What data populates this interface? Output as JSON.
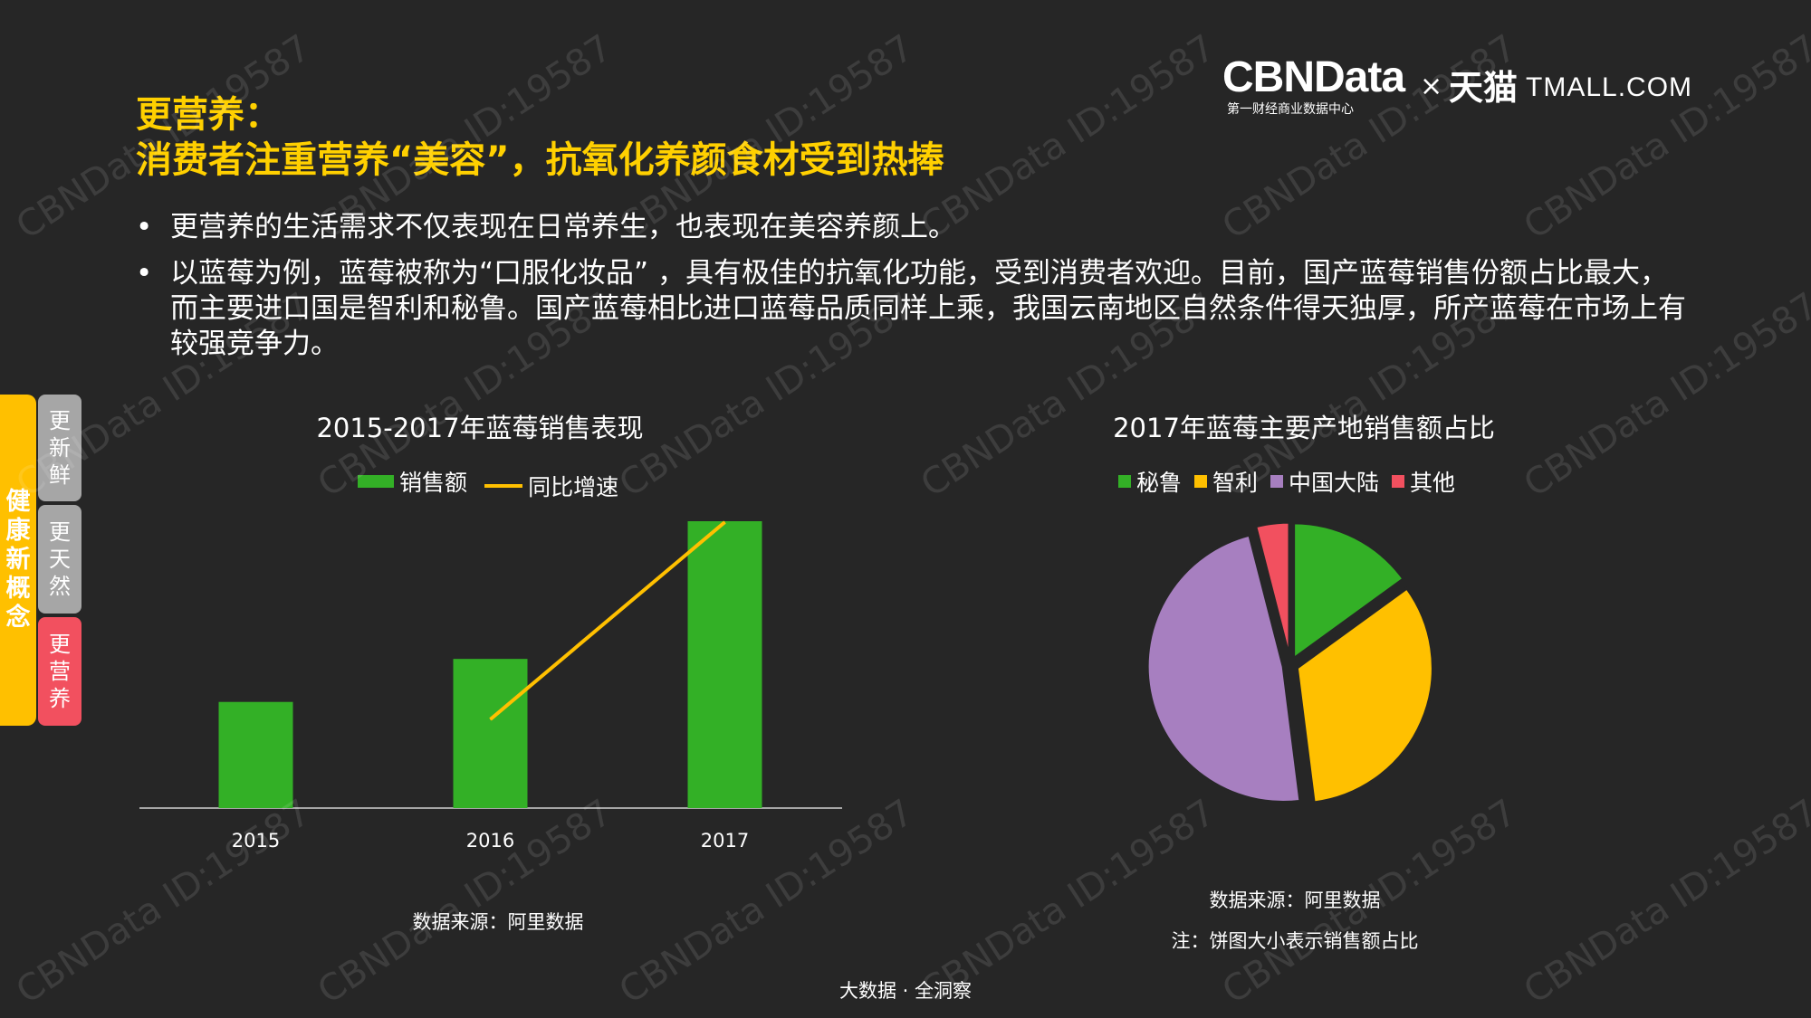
{
  "header": {
    "title_line1": "更营养：",
    "title_line2": "消费者注重营养“美容”，抗氧化养颜食材受到热捧"
  },
  "logos": {
    "cbn": "CBNData",
    "cbn_sub": "第一财经商业数据中心",
    "times": "×",
    "tmall_cn": "天猫",
    "tmall_en": "TMALL.COM"
  },
  "bullets": [
    "更营养的生活需求不仅表现在日常养生，也表现在美容养颜上。",
    "以蓝莓为例，蓝莓被称为“口服化妆品” ，具有极佳的抗氧化功能，受到消费者欢迎。目前，国产蓝莓销售份额占比最大，而主要进口国是智利和秘鲁。国产蓝莓相比进口蓝莓品质同样上乘，我国云南地区自然条件得天独厚，所产蓝莓在市场上有较强竞争力。"
  ],
  "sidebar": {
    "main_label": "健康新概念",
    "tabs": [
      {
        "label": "更新鲜",
        "color": "#A6A6A6"
      },
      {
        "label": "更天然",
        "color": "#A6A6A6"
      },
      {
        "label": "更营养",
        "color": "#F2505F"
      }
    ],
    "main_color": "#FFC000"
  },
  "watermark": "CBNData ID:19587",
  "chart_data": [
    {
      "type": "bar",
      "title": "2015-2017年蓝莓销售表现",
      "categories": [
        "2015",
        "2016",
        "2017"
      ],
      "series": [
        {
          "name": "销售额",
          "kind": "bar",
          "color": "#33B026",
          "values": [
            0.37,
            0.52,
            1.0
          ]
        },
        {
          "name": "同比增速",
          "kind": "line",
          "color": "#FFC000",
          "values": [
            null,
            0.4,
            1.0
          ]
        }
      ],
      "axes_labels_shown": false,
      "source": "数据来源：阿里数据"
    },
    {
      "type": "pie",
      "title": "2017年蓝莓主要产地销售额占比",
      "categories": [
        "秘鲁",
        "智利",
        "中国大陆",
        "其他"
      ],
      "values": [
        15,
        33,
        48,
        4
      ],
      "colors": [
        "#33B026",
        "#FFC000",
        "#A77FC0",
        "#F2505F"
      ],
      "source": "数据来源：阿里数据",
      "note": "注：饼图大小表示销售额占比"
    }
  ],
  "footer": "大数据 · 全洞察"
}
